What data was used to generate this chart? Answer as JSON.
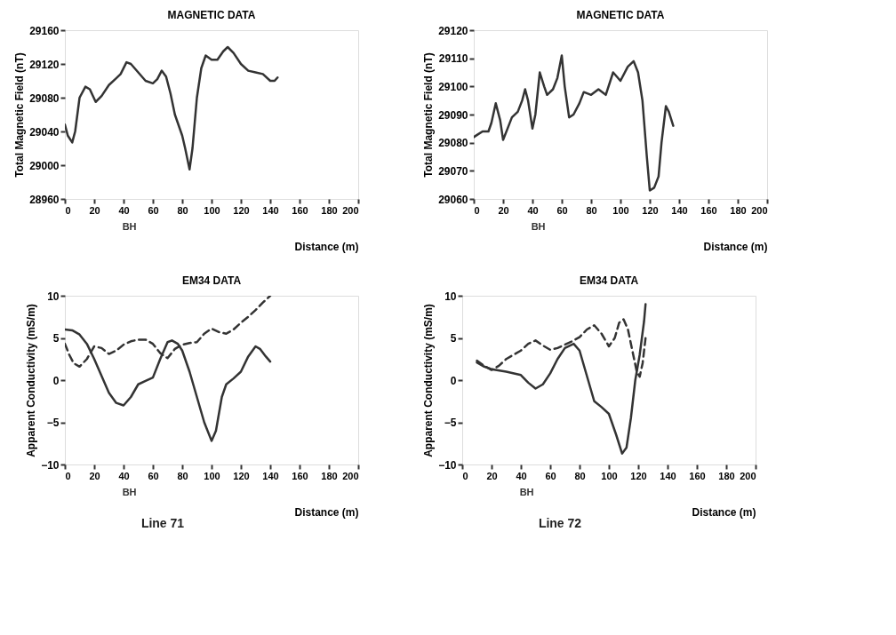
{
  "chart_data": [
    {
      "type": "line",
      "title": "MAGNETIC DATA",
      "xlabel": "Distance (m)",
      "ylabel": "Total Magnetic Field (nT)",
      "xlim": [
        0,
        200
      ],
      "xticks": [
        0,
        20,
        40,
        60,
        80,
        100,
        120,
        140,
        160,
        180,
        200
      ],
      "ylim": [
        28960,
        29160
      ],
      "yticks": [
        28960,
        29000,
        29040,
        29080,
        29120,
        29160
      ],
      "grid": false,
      "annotations": [
        "BH"
      ],
      "series": [
        {
          "color": "#333333",
          "line_style": "solid",
          "x": [
            0,
            2,
            5,
            7,
            10,
            14,
            17,
            21,
            25,
            30,
            35,
            38,
            42,
            45,
            50,
            55,
            60,
            63,
            66,
            69,
            72,
            75,
            80,
            82,
            85,
            87,
            90,
            93,
            96,
            100,
            104,
            108,
            111,
            115,
            120,
            125,
            130,
            135,
            140,
            143,
            145
          ],
          "values": [
            29048,
            29035,
            29027,
            29040,
            29080,
            29093,
            29090,
            29075,
            29082,
            29095,
            29103,
            29108,
            29122,
            29120,
            29110,
            29100,
            29097,
            29102,
            29112,
            29105,
            29085,
            29060,
            29035,
            29020,
            28995,
            29020,
            29080,
            29115,
            29130,
            29125,
            29125,
            29135,
            29140,
            29133,
            29120,
            29112,
            29110,
            29108,
            29100,
            29100,
            29104
          ]
        }
      ]
    },
    {
      "type": "line",
      "title": "MAGNETIC DATA",
      "xlabel": "Distance (m)",
      "ylabel": "Total Magnetic Field (nT)",
      "xlim": [
        0,
        200
      ],
      "xticks": [
        0,
        20,
        40,
        60,
        80,
        100,
        120,
        140,
        160,
        180,
        200
      ],
      "ylim": [
        29060,
        29120
      ],
      "yticks": [
        29060,
        29070,
        29080,
        29090,
        29100,
        29110,
        29120
      ],
      "grid": false,
      "annotations": [
        "BH"
      ],
      "series": [
        {
          "color": "#333333",
          "line_style": "solid",
          "x": [
            0,
            3,
            6,
            10,
            12,
            15,
            18,
            20,
            23,
            26,
            30,
            33,
            35,
            37,
            40,
            42,
            45,
            48,
            50,
            54,
            57,
            60,
            62,
            65,
            68,
            72,
            75,
            80,
            85,
            90,
            95,
            100,
            105,
            109,
            112,
            115,
            118,
            120,
            123,
            126,
            128,
            131,
            133,
            136
          ],
          "values": [
            29082,
            29083,
            29084,
            29084,
            29087,
            29094,
            29088,
            29081,
            29085,
            29089,
            29091,
            29095,
            29099,
            29095,
            29085,
            29090,
            29105,
            29100,
            29097,
            29099,
            29103,
            29111,
            29100,
            29089,
            29090,
            29094,
            29098,
            29097,
            29099,
            29097,
            29105,
            29102,
            29107,
            29109,
            29105,
            29095,
            29075,
            29063,
            29064,
            29068,
            29080,
            29093,
            29091,
            29086
          ]
        }
      ]
    },
    {
      "type": "line",
      "title": "EM34 DATA",
      "xlabel": "Distance (m)",
      "ylabel": "Apparent Conductivity (mS/m)",
      "xlim": [
        0,
        200
      ],
      "xticks": [
        0,
        20,
        40,
        60,
        80,
        100,
        120,
        140,
        160,
        180,
        200
      ],
      "ylim": [
        -10,
        10
      ],
      "yticks": [
        -10,
        -5,
        0,
        5,
        10
      ],
      "grid": false,
      "annotations": [
        "BH",
        "Line 71"
      ],
      "series": [
        {
          "color": "#333333",
          "line_style": "solid",
          "x": [
            0,
            5,
            10,
            15,
            20,
            25,
            30,
            35,
            40,
            45,
            50,
            55,
            60,
            65,
            70,
            73,
            77,
            80,
            85,
            90,
            95,
            100,
            103,
            107,
            110,
            115,
            120,
            125,
            130,
            133,
            137,
            140
          ],
          "values": [
            6,
            5.9,
            5.4,
            4.3,
            2.5,
            0.5,
            -1.5,
            -2.7,
            -3,
            -2,
            -0.5,
            -0.1,
            0.3,
            2.5,
            4.5,
            4.7,
            4.3,
            3.5,
            1,
            -2,
            -5,
            -7.2,
            -6,
            -2,
            -0.5,
            0.2,
            1,
            2.8,
            4,
            3.7,
            2.8,
            2.2
          ]
        },
        {
          "color": "#333333",
          "line_style": "dashed",
          "x": [
            0,
            3,
            6,
            10,
            15,
            20,
            25,
            30,
            35,
            40,
            45,
            50,
            55,
            60,
            65,
            70,
            75,
            80,
            85,
            90,
            95,
            100,
            105,
            110,
            115,
            120,
            125,
            130,
            135,
            140
          ],
          "values": [
            4.3,
            3,
            2,
            1.6,
            2.5,
            4,
            3.8,
            3.1,
            3.5,
            4.2,
            4.6,
            4.8,
            4.8,
            4.3,
            3.2,
            2.6,
            3.7,
            4.2,
            4.4,
            4.5,
            5.5,
            6.1,
            5.7,
            5.5,
            6,
            6.8,
            7.5,
            8.3,
            9.2,
            10
          ]
        }
      ]
    },
    {
      "type": "line",
      "title": "EM34 DATA",
      "xlabel": "Distance (m)",
      "ylabel": "Apparent Conductivity (mS/m)",
      "xlim": [
        0,
        200
      ],
      "xticks": [
        0,
        20,
        40,
        60,
        80,
        100,
        120,
        140,
        160,
        180,
        200
      ],
      "ylim": [
        -10,
        10
      ],
      "yticks": [
        -10,
        -5,
        0,
        5,
        10
      ],
      "grid": false,
      "annotations": [
        "BH",
        "Line 72"
      ],
      "series": [
        {
          "color": "#333333",
          "line_style": "solid",
          "x": [
            10,
            15,
            20,
            30,
            40,
            45,
            50,
            55,
            60,
            65,
            70,
            76,
            80,
            85,
            90,
            95,
            100,
            105,
            109,
            112,
            115,
            118,
            121,
            124,
            125
          ],
          "values": [
            2.1,
            1.6,
            1.3,
            1,
            0.6,
            -0.3,
            -1,
            -0.5,
            0.8,
            2.5,
            3.8,
            4.3,
            3.5,
            0.5,
            -2.5,
            -3.2,
            -4,
            -6.5,
            -8.7,
            -8,
            -4.5,
            0,
            3,
            7,
            9
          ]
        },
        {
          "color": "#333333",
          "line_style": "dashed",
          "x": [
            10,
            15,
            20,
            25,
            30,
            40,
            45,
            50,
            55,
            60,
            65,
            70,
            75,
            80,
            85,
            90,
            95,
            100,
            104,
            107,
            110,
            113,
            116,
            119,
            121,
            123,
            125
          ],
          "values": [
            2.3,
            1.7,
            1.2,
            1.7,
            2.5,
            3.5,
            4.3,
            4.7,
            4.1,
            3.6,
            3.8,
            4.2,
            4.6,
            5.1,
            6,
            6.5,
            5.5,
            4,
            5,
            6.8,
            7.2,
            6,
            3.5,
            1,
            0.4,
            2,
            5
          ]
        }
      ]
    }
  ]
}
